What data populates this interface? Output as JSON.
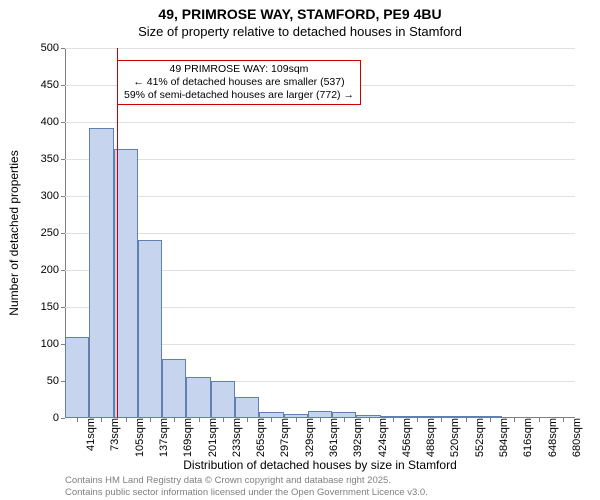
{
  "title": "49, PRIMROSE WAY, STAMFORD, PE9 4BU",
  "subtitle": "Size of property relative to detached houses in Stamford",
  "y_axis_title": "Number of detached properties",
  "x_axis_title": "Distribution of detached houses by size in Stamford",
  "footer_line1": "Contains HM Land Registry data © Crown copyright and database right 2025.",
  "footer_line2": "Contains public sector information licensed under the Open Government Licence v3.0.",
  "chart": {
    "type": "histogram",
    "background_color": "#ffffff",
    "grid_color": "#e0e0e0",
    "axis_color": "#808080",
    "bar_fill": "#c6d4ee",
    "bar_border": "#6080b0",
    "reference_line_color": "#cc0000",
    "annotation_border": "#cc0000",
    "ylim": [
      0,
      500
    ],
    "ytick_step": 50,
    "x_labels": [
      "41sqm",
      "73sqm",
      "105sqm",
      "137sqm",
      "169sqm",
      "201sqm",
      "233sqm",
      "265sqm",
      "297sqm",
      "329sqm",
      "361sqm",
      "392sqm",
      "424sqm",
      "456sqm",
      "488sqm",
      "520sqm",
      "552sqm",
      "584sqm",
      "616sqm",
      "648sqm",
      "680sqm"
    ],
    "values": [
      110,
      392,
      363,
      240,
      80,
      55,
      50,
      28,
      8,
      6,
      10,
      8,
      4,
      1,
      3,
      2,
      1,
      1,
      0,
      0,
      0
    ],
    "reference_value_sqm": 109,
    "x_min": 41,
    "x_step": 32,
    "bar_width_ratio": 1.0
  },
  "annotation": {
    "line1": "49 PRIMROSE WAY: 109sqm",
    "line2": "← 41% of detached houses are smaller (537)",
    "line3": "59% of semi-detached houses are larger (772) →"
  }
}
